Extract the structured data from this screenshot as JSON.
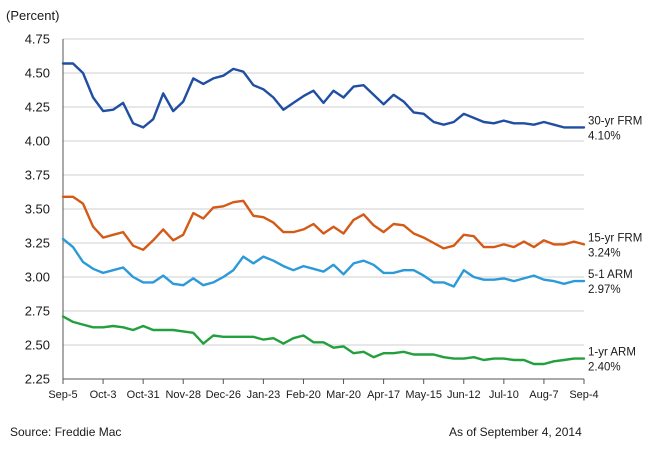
{
  "chart_data": {
    "type": "line",
    "unit_label": "(Percent)",
    "ylim": [
      2.25,
      4.75
    ],
    "y_ticks": [
      "4.75",
      "4.50",
      "4.25",
      "4.00",
      "3.75",
      "3.50",
      "3.25",
      "3.00",
      "2.75",
      "2.50",
      "2.25"
    ],
    "y_tick_values": [
      4.75,
      4.5,
      4.25,
      4.0,
      3.75,
      3.5,
      3.25,
      3.0,
      2.75,
      2.5,
      2.25
    ],
    "x_ticks": [
      "Sep-5",
      "Oct-3",
      "Oct-31",
      "Nov-28",
      "Dec-26",
      "Jan-23",
      "Feb-20",
      "Mar-20",
      "Apr-17",
      "May-15",
      "Jun-12",
      "Jul-10",
      "Aug-7",
      "Sep-4"
    ],
    "x_tick_weeks": [
      0,
      4,
      8,
      12,
      16,
      20,
      24,
      28,
      32,
      36,
      40,
      44,
      48,
      52
    ],
    "num_weeks": 53,
    "series": [
      {
        "name": "30-yr FRM",
        "end_label": "4.10%",
        "color": "#1f4ea3",
        "values": [
          4.57,
          4.57,
          4.5,
          4.32,
          4.22,
          4.23,
          4.28,
          4.13,
          4.1,
          4.16,
          4.35,
          4.22,
          4.29,
          4.46,
          4.42,
          4.46,
          4.48,
          4.53,
          4.51,
          4.41,
          4.38,
          4.32,
          4.23,
          4.28,
          4.33,
          4.37,
          4.28,
          4.37,
          4.32,
          4.4,
          4.41,
          4.34,
          4.27,
          4.34,
          4.29,
          4.21,
          4.2,
          4.14,
          4.12,
          4.14,
          4.2,
          4.17,
          4.14,
          4.13,
          4.15,
          4.13,
          4.13,
          4.12,
          4.14,
          4.12,
          4.1,
          4.1,
          4.1
        ]
      },
      {
        "name": "15-yr FRM",
        "end_label": "3.24%",
        "color": "#d45a17",
        "values": [
          3.59,
          3.59,
          3.54,
          3.37,
          3.29,
          3.31,
          3.33,
          3.23,
          3.2,
          3.27,
          3.35,
          3.27,
          3.31,
          3.47,
          3.43,
          3.51,
          3.52,
          3.55,
          3.56,
          3.45,
          3.44,
          3.4,
          3.33,
          3.33,
          3.35,
          3.39,
          3.32,
          3.37,
          3.32,
          3.42,
          3.46,
          3.38,
          3.33,
          3.39,
          3.38,
          3.32,
          3.29,
          3.25,
          3.21,
          3.23,
          3.31,
          3.3,
          3.22,
          3.22,
          3.24,
          3.22,
          3.26,
          3.22,
          3.27,
          3.24,
          3.24,
          3.26,
          3.24
        ]
      },
      {
        "name": "5-1 ARM",
        "end_label": "2.97%",
        "color": "#2b9ad8",
        "values": [
          3.28,
          3.22,
          3.11,
          3.06,
          3.03,
          3.05,
          3.07,
          3.0,
          2.96,
          2.96,
          3.01,
          2.95,
          2.94,
          2.99,
          2.94,
          2.96,
          3.0,
          3.05,
          3.15,
          3.1,
          3.15,
          3.12,
          3.08,
          3.05,
          3.08,
          3.06,
          3.04,
          3.09,
          3.02,
          3.1,
          3.12,
          3.09,
          3.03,
          3.03,
          3.05,
          3.05,
          3.01,
          2.96,
          2.96,
          2.93,
          3.05,
          3.0,
          2.98,
          2.98,
          2.99,
          2.97,
          2.99,
          3.01,
          2.98,
          2.97,
          2.95,
          2.97,
          2.97
        ]
      },
      {
        "name": "1-yr ARM",
        "end_label": "2.40%",
        "color": "#23a03e",
        "values": [
          2.71,
          2.67,
          2.65,
          2.63,
          2.63,
          2.64,
          2.63,
          2.61,
          2.64,
          2.61,
          2.61,
          2.61,
          2.6,
          2.59,
          2.51,
          2.57,
          2.56,
          2.56,
          2.56,
          2.56,
          2.54,
          2.55,
          2.51,
          2.55,
          2.57,
          2.52,
          2.52,
          2.48,
          2.49,
          2.44,
          2.45,
          2.41,
          2.44,
          2.44,
          2.45,
          2.43,
          2.43,
          2.43,
          2.41,
          2.4,
          2.4,
          2.41,
          2.39,
          2.4,
          2.4,
          2.39,
          2.39,
          2.36,
          2.36,
          2.38,
          2.39,
          2.4,
          2.4
        ]
      }
    ]
  },
  "footer": {
    "source": "Source: Freddie Mac",
    "as_of": "As of September 4, 2014"
  }
}
